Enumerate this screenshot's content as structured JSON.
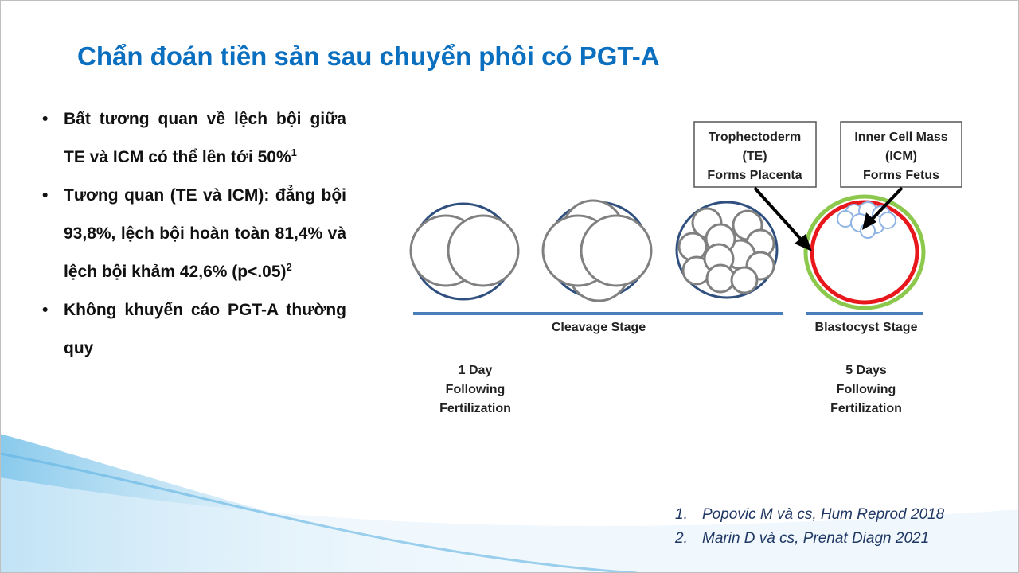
{
  "slide": {
    "title": "Chẩn đoán tiền sản sau chuyển phôi có PGT-A",
    "bullets": [
      {
        "text": "Bất tương quan về lệch bội giữa TE và ICM có thể lên tới 50%",
        "sup": "1"
      },
      {
        "text": "Tương quan (TE và ICM): đẳng bội 93,8%, lệch bội hoàn toàn 81,4% và lệch bội khảm 42,6% (p<.05)",
        "sup": "2"
      },
      {
        "text": "Không khuyến cáo PGT-A thường quy",
        "sup": ""
      }
    ],
    "bullet_glyph": "•",
    "title_color": "#0b6fbf"
  },
  "diagram": {
    "te_box": [
      "Trophectoderm",
      "(TE)",
      "Forms Placenta"
    ],
    "icm_box": [
      "Inner Cell Mass",
      "(ICM)",
      "Forms Fetus"
    ],
    "cleavage_label": "Cleavage Stage",
    "blastocyst_label": "Blastocyst Stage",
    "day1": [
      "1 Day",
      "Following",
      "Fertilization"
    ],
    "day5": [
      "5 Days",
      "Following",
      "Fertilization"
    ],
    "colors": {
      "zona": "#2f4f7f",
      "cell": "#808080",
      "te": "#e8171c",
      "outer": "#8cc84b",
      "icm": "#8fb4e3",
      "bar": "#4a7ebb"
    }
  },
  "references": [
    {
      "num": "1.",
      "text": "Popovic M và cs, Hum Reprod 2018"
    },
    {
      "num": "2.",
      "text": "Marin D và cs, Prenat Diagn 2021"
    }
  ]
}
